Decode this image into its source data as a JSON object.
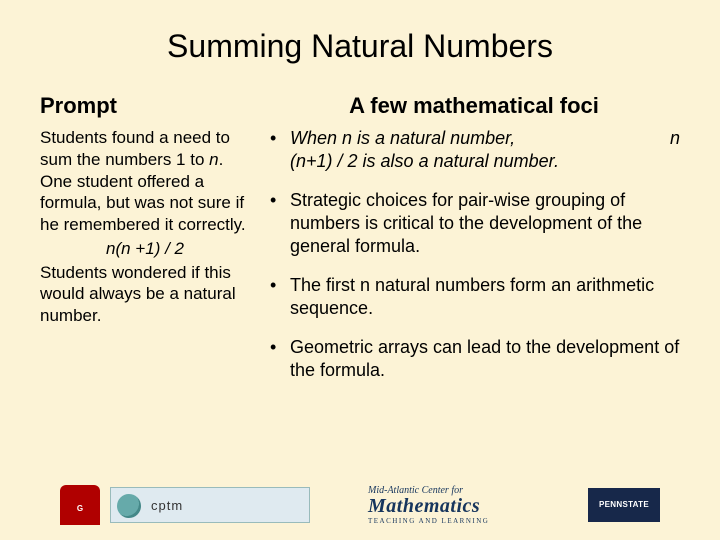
{
  "background_color": "#fcf3d6",
  "text_color": "#000000",
  "title": "Summing Natural Numbers",
  "title_fontsize": 32,
  "left": {
    "heading": "Prompt",
    "para1_a": "Students found a need to sum the numbers 1 to ",
    "para1_n1": "n",
    "para1_b": ".  One student offered a formula, but was not sure if he remembered it correctly.",
    "formula": "n(n +1) / 2",
    "para2": "Students wondered if this would always be a natural number.",
    "body_fontsize": 17
  },
  "right": {
    "heading": "A few mathematical foci",
    "body_fontsize": 18,
    "items": [
      {
        "pre": "When ",
        "n1": "n",
        "mid": " is a natural number,",
        "trail_n": "n",
        "line2_a": "(",
        "line2_n": "n",
        "line2_b": "+1) / 2 is also a natural number."
      },
      {
        "text": "Strategic choices for pair-wise grouping of numbers is critical to the development of the general formula."
      },
      {
        "text": "The first n natural numbers form an arithmetic sequence."
      },
      {
        "text": "Geometric arrays can lead to the development of the formula."
      }
    ]
  },
  "logos": {
    "uga": "G",
    "cptm": "cptm",
    "midatl_small": "Mid-Atlantic Center for",
    "midatl_big": "Mathematics",
    "midatl_tiny": "TEACHING AND LEARNING",
    "psu": "PENNSTATE"
  }
}
